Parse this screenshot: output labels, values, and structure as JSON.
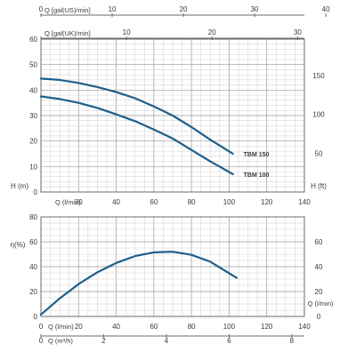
{
  "chart_data": [
    {
      "type": "line",
      "name": "head-chart",
      "xlabel": "Q (l/min)",
      "xlim": [
        0,
        140
      ],
      "xticks": [
        0,
        20,
        40,
        60,
        80,
        100,
        120,
        140
      ],
      "x_tick_labels": [
        "0",
        "20",
        "40",
        "60",
        "80",
        "100",
        "120",
        "140"
      ],
      "ylabel_left": "H (m)",
      "ylim_left": [
        0,
        60
      ],
      "yticks_left": [
        0,
        10,
        20,
        30,
        40,
        50,
        60
      ],
      "ylabel_right": "H (ft)",
      "ylim_right": [
        0,
        196.85
      ],
      "yticks_right": [
        50,
        100,
        150
      ],
      "top_axes": [
        {
          "label": "Q  [gal(US)/min]",
          "ticks": [
            0,
            10,
            20,
            30,
            40
          ],
          "lpm_per_unit": 3.785
        },
        {
          "label": "Q  [gal(UK)/min]",
          "ticks": [
            0,
            10,
            20,
            30
          ],
          "lpm_per_unit": 4.546
        }
      ],
      "grid": true,
      "color": "#1d5e8c",
      "series": [
        {
          "name": "TBM 150",
          "x": [
            0,
            10,
            20,
            30,
            40,
            50,
            60,
            70,
            80,
            90,
            102
          ],
          "y": [
            44.5,
            44.0,
            42.8,
            41.2,
            39.2,
            36.8,
            33.6,
            30.0,
            25.5,
            20.5,
            15.0
          ]
        },
        {
          "name": "TBM 100",
          "x": [
            0,
            10,
            20,
            30,
            40,
            50,
            60,
            70,
            80,
            90,
            102
          ],
          "y": [
            37.5,
            36.5,
            35.0,
            33.0,
            30.5,
            27.8,
            24.5,
            21.0,
            16.5,
            12.0,
            7.0
          ]
        }
      ]
    },
    {
      "type": "line",
      "name": "efficiency-chart",
      "ylabel_left": "η(%)",
      "ylim_left": [
        0,
        80
      ],
      "yticks_left": [
        0,
        20,
        40,
        60,
        80
      ],
      "ylim_right": [
        0,
        80
      ],
      "yticks_right": [
        0,
        20,
        40,
        60
      ],
      "xlim": [
        0,
        140
      ],
      "bottom_axes": [
        {
          "label": "Q  (l/min)",
          "ticks": [
            0,
            20,
            40,
            60,
            80,
            100,
            120,
            140
          ],
          "lpm_per_unit": 1
        },
        {
          "label": "Q  (m³/h)",
          "ticks": [
            0,
            2,
            4,
            6,
            8
          ],
          "lpm_per_unit": 16.667
        }
      ],
      "right_title": "Q (l/min)",
      "grid": true,
      "color": "#1d5e8c",
      "series": [
        {
          "x": [
            0,
            10,
            20,
            30,
            40,
            50,
            60,
            70,
            80,
            90,
            104
          ],
          "y": [
            1.5,
            14.5,
            26.0,
            35.5,
            43.0,
            48.5,
            51.5,
            52.0,
            49.5,
            44.0,
            31.0
          ]
        }
      ]
    }
  ]
}
